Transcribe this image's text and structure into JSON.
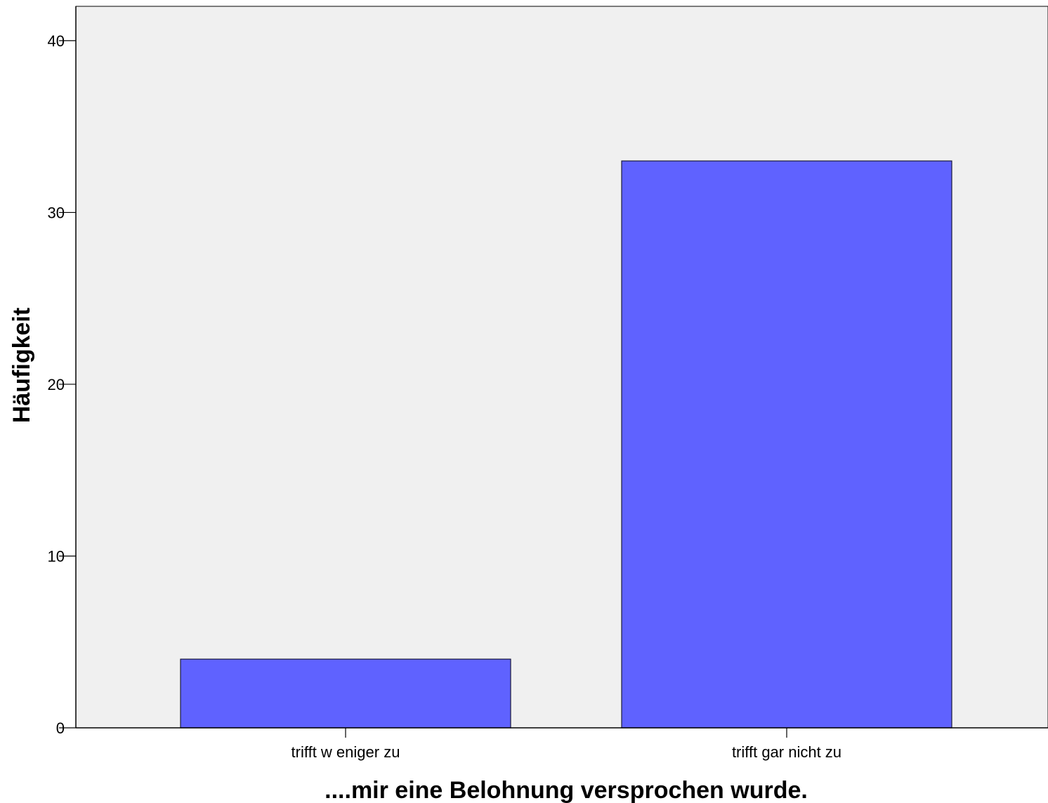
{
  "chart_data": {
    "type": "bar",
    "title": "",
    "categories": [
      "trifft w eniger zu",
      "trifft gar nicht zu"
    ],
    "values": [
      4,
      33
    ],
    "xlabel": "....mir eine Belohnung versprochen wurde.",
    "ylabel": "Häufigkeit",
    "ylim": [
      0,
      42
    ],
    "yticks": [
      0,
      10,
      20,
      30,
      40
    ],
    "grid": false,
    "legend": "none",
    "colors": {
      "bar_fill": "#5f62ff",
      "bar_stroke": "#1a1a3a",
      "plot_background": "#f0f0f0",
      "axis": "#000000"
    }
  }
}
